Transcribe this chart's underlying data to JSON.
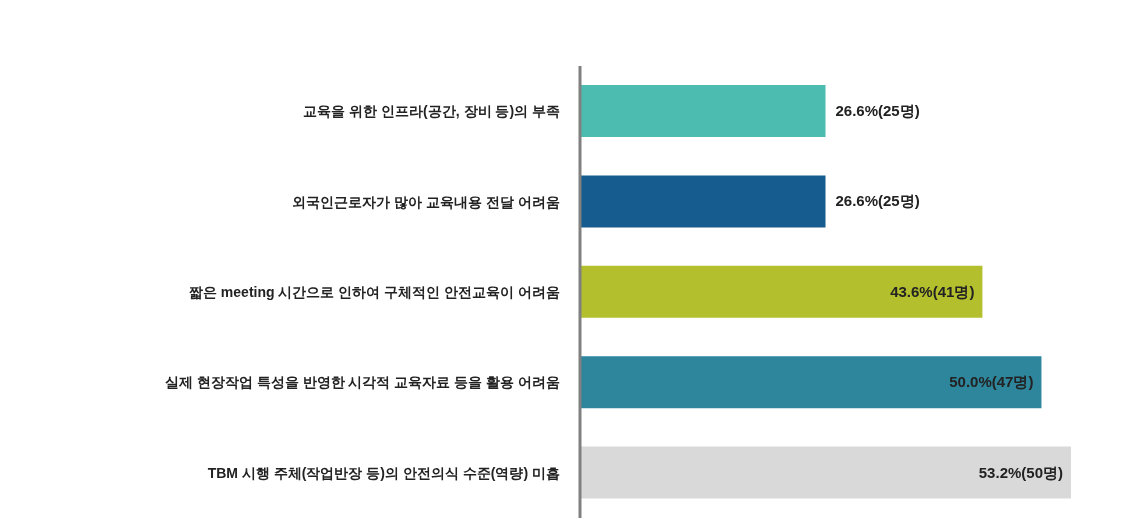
{
  "chart_data": {
    "type": "bar",
    "orientation": "horizontal",
    "categories": [
      "교육을 위한 인프라(공간, 장비 등)의 부족",
      "외국인근로자가 많아 교육내용 전달 어려움",
      "짧은 meeting 시간으로 인하여 구체적인 안전교육이 어려움",
      "실제 현장작업 특성을 반영한 시각적 교육자료 등을 활용 어려움",
      "TBM 시행 주체(작업반장 등)의 안전의식 수준(역량) 미흡"
    ],
    "values": [
      26.6,
      26.6,
      43.6,
      50.0,
      53.2
    ],
    "colors": [
      "#4dbcb0",
      "#175c8e",
      "#b3bf2d",
      "#2e869c",
      "#d9d9d9"
    ],
    "value_labels": [
      "26.6%(25명)",
      "26.6%(25명)",
      "43.6%(41명)",
      "50.0%(47명)",
      "53.2%(50명)"
    ],
    "grid": false,
    "legend": false
  }
}
